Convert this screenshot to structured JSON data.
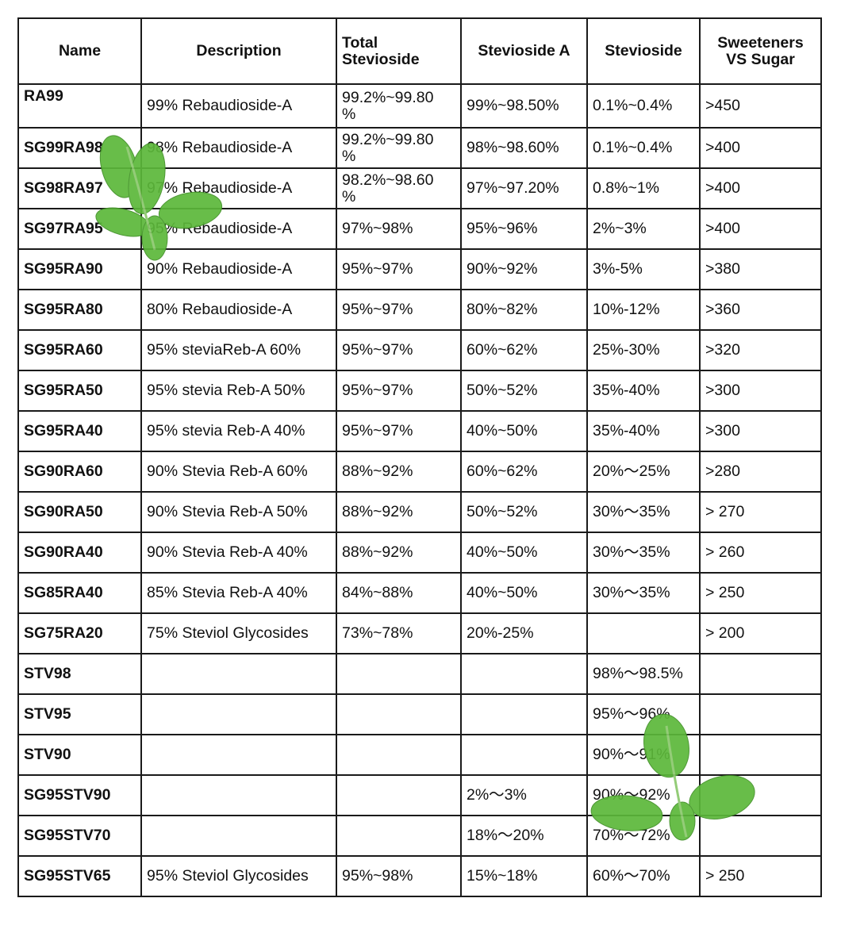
{
  "table": {
    "headers": [
      "Name",
      "Description",
      "Total\nStevioside",
      "Stevioside  A",
      "Stevioside",
      "Sweeteners\nVS Sugar"
    ],
    "rows": [
      [
        "RA99",
        "99% Rebaudioside-A",
        "99.2%~99.80\n%",
        "99%~98.50%",
        "0.1%~0.4%",
        ">450"
      ],
      [
        "SG99RA98",
        "98% Rebaudioside-A",
        "99.2%~99.80\n%",
        "98%~98.60%",
        "0.1%~0.4%",
        ">400"
      ],
      [
        "SG98RA97",
        "97% Rebaudioside-A",
        "98.2%~98.60\n%",
        "97%~97.20%",
        "0.8%~1%",
        ">400"
      ],
      [
        "SG97RA95",
        "95% Rebaudioside-A",
        "97%~98%",
        "95%~96%",
        "2%~3%",
        ">400"
      ],
      [
        "SG95RA90",
        "90% Rebaudioside-A",
        "95%~97%",
        "90%~92%",
        "3%-5%",
        ">380"
      ],
      [
        "SG95RA80",
        "80% Rebaudioside-A",
        "95%~97%",
        "80%~82%",
        "10%-12%",
        ">360"
      ],
      [
        "SG95RA60",
        "95% steviaReb-A 60%",
        "95%~97%",
        "60%~62%",
        "25%-30%",
        ">320"
      ],
      [
        "SG95RA50",
        "95% stevia Reb-A 50%",
        "95%~97%",
        "50%~52%",
        "35%-40%",
        ">300"
      ],
      [
        "SG95RA40",
        "95% stevia Reb-A 40%",
        "95%~97%",
        "40%~50%",
        "35%-40%",
        ">300"
      ],
      [
        "SG90RA60",
        "90% Stevia Reb-A 60%",
        "88%~92%",
        "60%~62%",
        "20%～25%",
        ">280"
      ],
      [
        "SG90RA50",
        "90% Stevia Reb-A 50%",
        "88%~92%",
        "50%~52%",
        "30%～35%",
        "> 270"
      ],
      [
        "SG90RA40",
        "90% Stevia Reb-A 40%",
        "88%~92%",
        "40%~50%",
        "30%～35%",
        "> 260"
      ],
      [
        "SG85RA40",
        "85% Stevia Reb-A 40%",
        "84%~88%",
        "40%~50%",
        "30%～35%",
        "> 250"
      ],
      [
        "SG75RA20",
        "75% Steviol Glycosides",
        "73%~78%",
        "20%-25%",
        "",
        "> 200"
      ],
      [
        "STV98",
        "",
        "",
        "",
        "98%～98.5%",
        ""
      ],
      [
        "STV95",
        "",
        "",
        "",
        "95%～96%",
        ""
      ],
      [
        "STV90",
        "",
        "",
        "",
        "90%～91%",
        ""
      ],
      [
        "SG95STV90",
        "",
        "",
        "2%～3%",
        "90%～92%",
        ""
      ],
      [
        "SG95STV70",
        "",
        "",
        "18%～20%",
        "70%～72%",
        ""
      ],
      [
        "SG95STV65",
        "95% Steviol Glycosides",
        "95%~98%",
        "15%~18%",
        "60%～70%",
        "> 250"
      ]
    ]
  },
  "decor": {
    "leaf_icon": "stevia-leaf-icon",
    "leaf_color": "#5cb83a"
  }
}
